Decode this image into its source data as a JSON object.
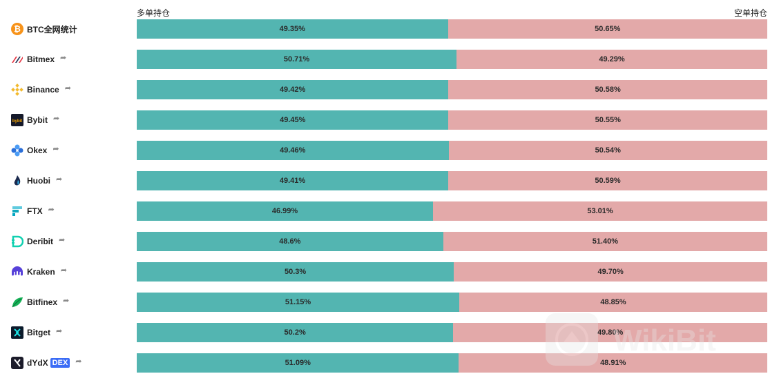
{
  "headers": {
    "long": "多单持仓",
    "short": "空单持仓"
  },
  "colors": {
    "long": "#53b5b1",
    "short": "#e3a9a9"
  },
  "watermark": "WikiBit",
  "chart_data": {
    "type": "bar",
    "orientation": "horizontal-stacked",
    "categories": [
      "BTC全网统计",
      "Bitmex",
      "Binance",
      "Bybit",
      "Okex",
      "Huobi",
      "FTX",
      "Deribit",
      "Kraken",
      "Bitfinex",
      "Bitget",
      "dYdX"
    ],
    "series": [
      {
        "name": "多单持仓",
        "values": [
          49.35,
          50.71,
          49.42,
          49.45,
          49.46,
          49.41,
          46.99,
          48.6,
          50.3,
          51.15,
          50.2,
          51.09
        ]
      },
      {
        "name": "空单持仓",
        "values": [
          50.65,
          49.29,
          50.58,
          50.55,
          50.54,
          50.59,
          53.01,
          51.4,
          49.7,
          48.85,
          49.8,
          48.91
        ]
      }
    ],
    "xlim": [
      0,
      100
    ]
  },
  "rows": [
    {
      "name": "BTC全网统计",
      "icon": "bitcoin-icon",
      "share": false,
      "badge": "",
      "long_label": "49.35%",
      "short_label": "50.65%"
    },
    {
      "name": "Bitmex",
      "icon": "bitmex-icon",
      "share": true,
      "badge": "",
      "long_label": "50.71%",
      "short_label": "49.29%"
    },
    {
      "name": "Binance",
      "icon": "binance-icon",
      "share": true,
      "badge": "",
      "long_label": "49.42%",
      "short_label": "50.58%"
    },
    {
      "name": "Bybit",
      "icon": "bybit-icon",
      "share": true,
      "badge": "",
      "long_label": "49.45%",
      "short_label": "50.55%"
    },
    {
      "name": "Okex",
      "icon": "okex-icon",
      "share": true,
      "badge": "",
      "long_label": "49.46%",
      "short_label": "50.54%"
    },
    {
      "name": "Huobi",
      "icon": "huobi-icon",
      "share": true,
      "badge": "",
      "long_label": "49.41%",
      "short_label": "50.59%"
    },
    {
      "name": "FTX",
      "icon": "ftx-icon",
      "share": true,
      "badge": "",
      "long_label": "46.99%",
      "short_label": "53.01%"
    },
    {
      "name": "Deribit",
      "icon": "deribit-icon",
      "share": true,
      "badge": "",
      "long_label": "48.6%",
      "short_label": "51.40%"
    },
    {
      "name": "Kraken",
      "icon": "kraken-icon",
      "share": true,
      "badge": "",
      "long_label": "50.3%",
      "short_label": "49.70%"
    },
    {
      "name": "Bitfinex",
      "icon": "bitfinex-icon",
      "share": true,
      "badge": "",
      "long_label": "51.15%",
      "short_label": "48.85%"
    },
    {
      "name": "Bitget",
      "icon": "bitget-icon",
      "share": true,
      "badge": "",
      "long_label": "50.2%",
      "short_label": "49.80%"
    },
    {
      "name": "dYdX",
      "icon": "dydx-icon",
      "share": true,
      "badge": "DEX",
      "long_label": "51.09%",
      "short_label": "48.91%"
    }
  ]
}
